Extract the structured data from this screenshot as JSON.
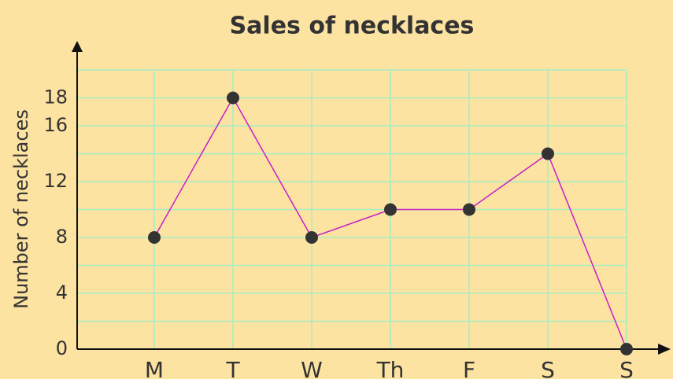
{
  "chart_data": {
    "type": "line",
    "title": "Sales of necklaces",
    "y_label": "Number of necklaces",
    "categories": [
      "M",
      "T",
      "W",
      "Th",
      "F",
      "S",
      "S"
    ],
    "series": [
      {
        "name": "Necklaces",
        "color": "#c81ec8",
        "values": [
          8,
          18,
          8,
          10,
          10,
          14,
          0
        ]
      }
    ],
    "ylim": [
      0,
      20
    ],
    "yticks": [
      0,
      4,
      8,
      12,
      16,
      18
    ],
    "grid_yticks": [
      0,
      2,
      4,
      6,
      8,
      10,
      12,
      14,
      16,
      18,
      20
    ],
    "grid": true,
    "marker_color": "#333333"
  }
}
